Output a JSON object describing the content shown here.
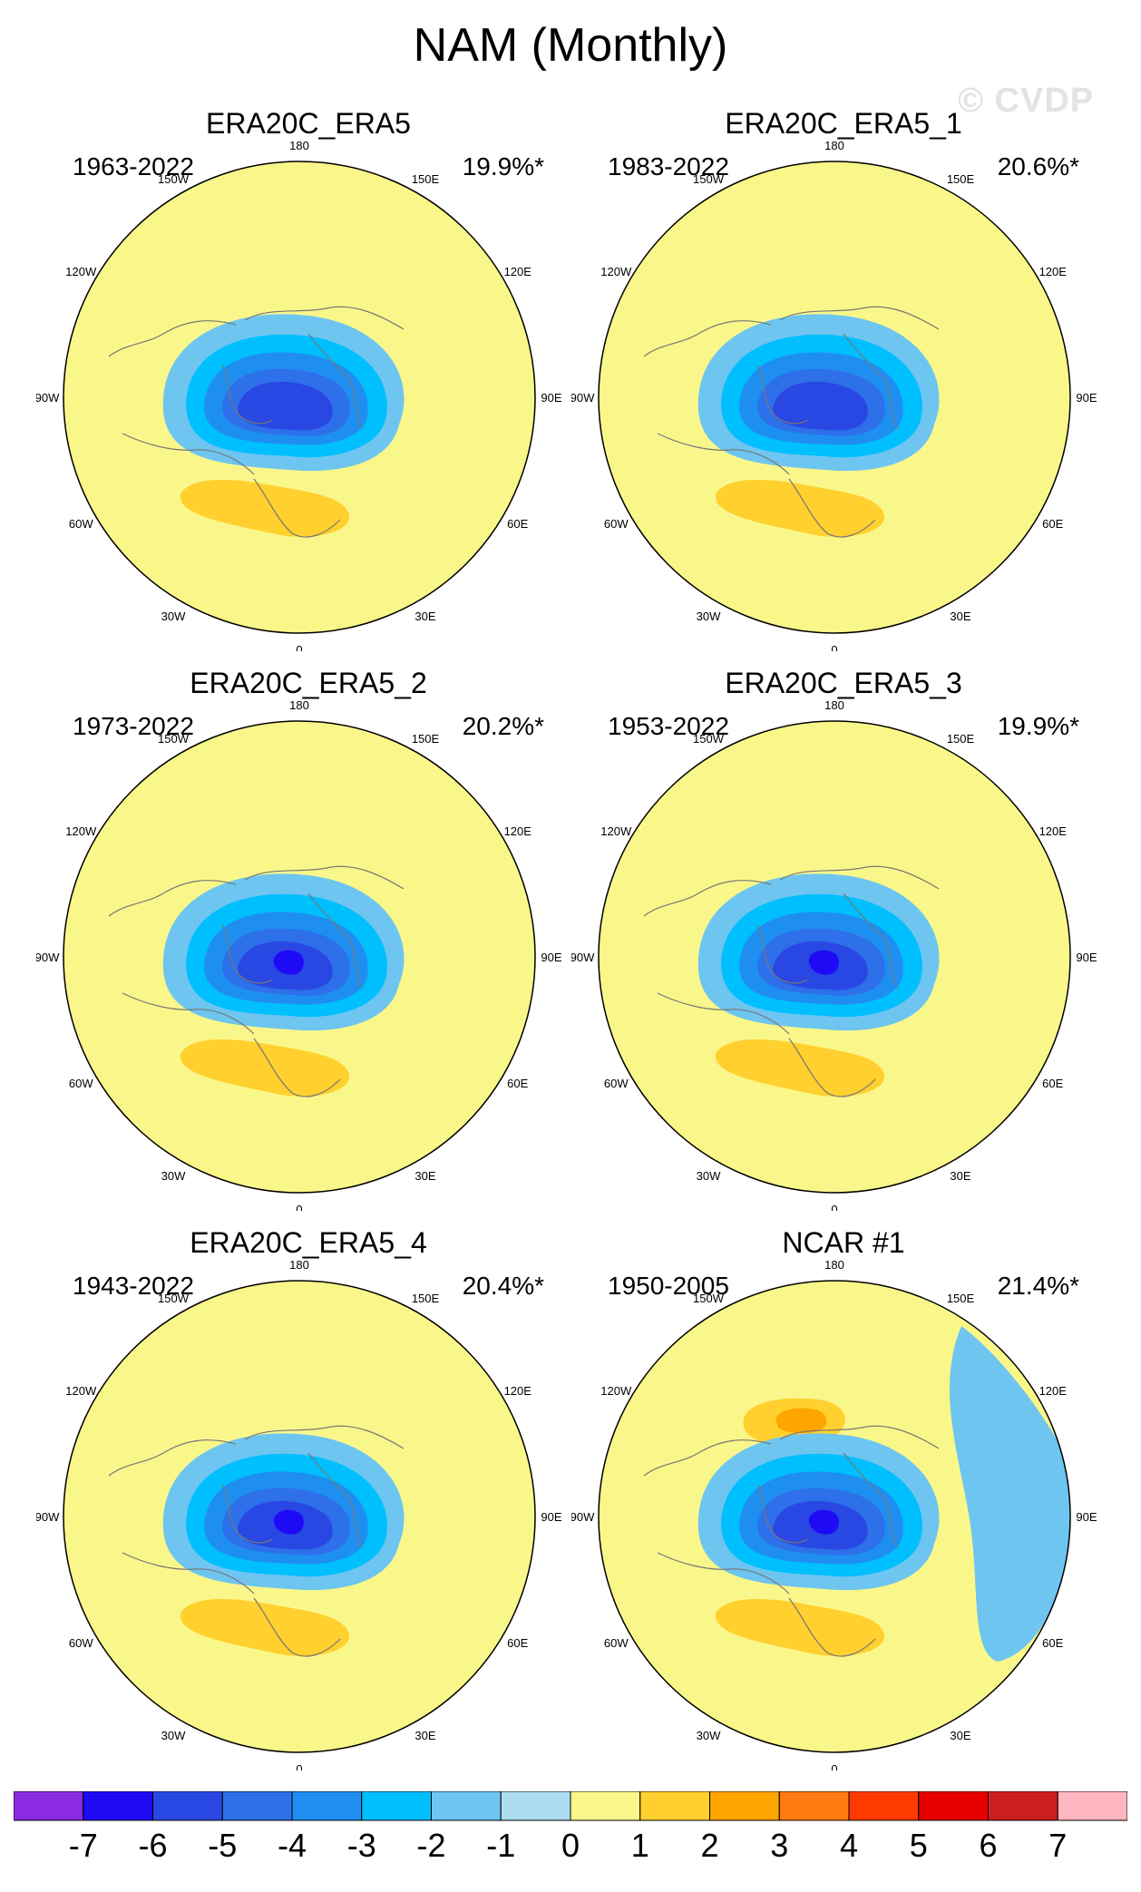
{
  "title": "NAM (Monthly)",
  "watermark": "© CVDP",
  "lon_labels": [
    "180",
    "150E",
    "120E",
    "90E",
    "60E",
    "30E",
    "0",
    "30W",
    "60W",
    "90W",
    "120W",
    "150W"
  ],
  "colorbar": {
    "labels": [
      "-7",
      "-6",
      "-5",
      "-4",
      "-3",
      "-2",
      "-1",
      "0",
      "1",
      "2",
      "3",
      "4",
      "5",
      "6",
      "7"
    ],
    "colors": [
      "#8A2BE2",
      "#1E0AF5",
      "#2847E3",
      "#2E6FEA",
      "#1E8FF0",
      "#00BFFF",
      "#6EC5F0",
      "#ADDDF2",
      "#FAF78A",
      "#FFD02E",
      "#FFA500",
      "#FF7A10",
      "#FF3A00",
      "#E60000",
      "#CC1E1E",
      "#FFB6BF"
    ]
  },
  "chart_data": [
    {
      "type": "heatmap",
      "projection": "polar-stereographic",
      "hemisphere": "north",
      "title": "ERA20C_ERA5",
      "period": "1963-2022",
      "variance_explained": "19.9%*",
      "features": [
        {
          "region": "Arctic",
          "min": -5
        },
        {
          "region": "North Pacific",
          "max": 2
        },
        {
          "region": "North Atlantic / Europe",
          "max": 3
        }
      ]
    },
    {
      "type": "heatmap",
      "projection": "polar-stereographic",
      "hemisphere": "north",
      "title": "ERA20C_ERA5_1",
      "period": "1983-2022",
      "variance_explained": "20.6%*",
      "features": [
        {
          "region": "Arctic",
          "min": -5
        },
        {
          "region": "North Pacific",
          "max": 2
        },
        {
          "region": "North Atlantic / Europe",
          "max": 3
        }
      ]
    },
    {
      "type": "heatmap",
      "projection": "polar-stereographic",
      "hemisphere": "north",
      "title": "ERA20C_ERA5_2",
      "period": "1973-2022",
      "variance_explained": "20.2%*",
      "features": [
        {
          "region": "Arctic",
          "min": -6
        },
        {
          "region": "North Pacific",
          "max": 2
        },
        {
          "region": "North Atlantic / Europe",
          "max": 3
        }
      ]
    },
    {
      "type": "heatmap",
      "projection": "polar-stereographic",
      "hemisphere": "north",
      "title": "ERA20C_ERA5_3",
      "period": "1953-2022",
      "variance_explained": "19.9%*",
      "features": [
        {
          "region": "Arctic",
          "min": -6
        },
        {
          "region": "North Pacific",
          "max": 2
        },
        {
          "region": "North Atlantic / Europe",
          "max": 3
        }
      ]
    },
    {
      "type": "heatmap",
      "projection": "polar-stereographic",
      "hemisphere": "north",
      "title": "ERA20C_ERA5_4",
      "period": "1943-2022",
      "variance_explained": "20.4%*",
      "features": [
        {
          "region": "Arctic",
          "min": -6
        },
        {
          "region": "North Pacific",
          "max": 2
        },
        {
          "region": "North Atlantic / Europe",
          "max": 3
        }
      ]
    },
    {
      "type": "heatmap",
      "projection": "polar-stereographic",
      "hemisphere": "north",
      "title": "NCAR #1",
      "period": "1950-2005",
      "variance_explained": "21.4%*",
      "features": [
        {
          "region": "Arctic",
          "min": -6
        },
        {
          "region": "North Pacific",
          "max": 4
        },
        {
          "region": "North Atlantic / Europe",
          "max": 3
        }
      ]
    }
  ]
}
